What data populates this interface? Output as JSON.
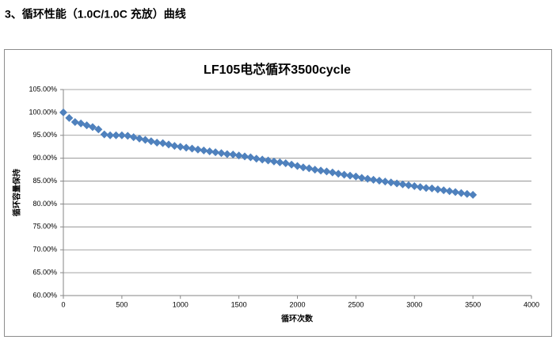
{
  "heading": "3、循环性能（1.0C/1.0C 充放）曲线",
  "chart_data": {
    "type": "scatter",
    "title": "LF105电芯循环3500cycle",
    "x_label": "循环次数",
    "y_label": "循环容量保持",
    "color": "#4f81bd",
    "grid": true,
    "xlim": [
      0,
      4000
    ],
    "xticks": [
      0,
      500,
      1000,
      1500,
      2000,
      2500,
      3000,
      3500,
      4000
    ],
    "ylim": [
      60,
      105
    ],
    "yticks": [
      {
        "value": 60,
        "label": "60.00%"
      },
      {
        "value": 65,
        "label": "65.00%"
      },
      {
        "value": 70,
        "label": "70.00%"
      },
      {
        "value": 75,
        "label": "75.00%"
      },
      {
        "value": 80,
        "label": "80.00%"
      },
      {
        "value": 85,
        "label": "85.00%"
      },
      {
        "value": 90,
        "label": "90.00%"
      },
      {
        "value": 95,
        "label": "95.00%"
      },
      {
        "value": 100,
        "label": "100.00%"
      },
      {
        "value": 105,
        "label": "105.00%"
      }
    ],
    "x": [
      0,
      50,
      100,
      150,
      200,
      250,
      300,
      350,
      400,
      450,
      500,
      550,
      600,
      650,
      700,
      750,
      800,
      850,
      900,
      950,
      1000,
      1050,
      1100,
      1150,
      1200,
      1250,
      1300,
      1350,
      1400,
      1450,
      1500,
      1550,
      1600,
      1650,
      1700,
      1750,
      1800,
      1850,
      1900,
      1950,
      2000,
      2050,
      2100,
      2150,
      2200,
      2250,
      2300,
      2350,
      2400,
      2450,
      2500,
      2550,
      2600,
      2650,
      2700,
      2750,
      2800,
      2850,
      2900,
      2950,
      3000,
      3050,
      3100,
      3150,
      3200,
      3250,
      3300,
      3350,
      3400,
      3450,
      3500
    ],
    "values": [
      100,
      98.8,
      97.9,
      97.6,
      97.2,
      96.8,
      96.3,
      95.2,
      95.0,
      95.0,
      95.0,
      94.9,
      94.6,
      94.3,
      94.0,
      93.7,
      93.4,
      93.3,
      93.0,
      92.7,
      92.5,
      92.3,
      92.1,
      91.9,
      91.7,
      91.5,
      91.3,
      91.1,
      90.9,
      90.8,
      90.6,
      90.4,
      90.2,
      89.9,
      89.7,
      89.5,
      89.3,
      89.1,
      88.9,
      88.6,
      88.3,
      88.0,
      87.8,
      87.5,
      87.3,
      87.1,
      86.9,
      86.6,
      86.4,
      86.2,
      86.0,
      85.7,
      85.5,
      85.3,
      85.1,
      84.9,
      84.7,
      84.5,
      84.3,
      84.1,
      83.9,
      83.7,
      83.5,
      83.4,
      83.2,
      83.0,
      82.8,
      82.6,
      82.4,
      82.2,
      82.0
    ]
  }
}
